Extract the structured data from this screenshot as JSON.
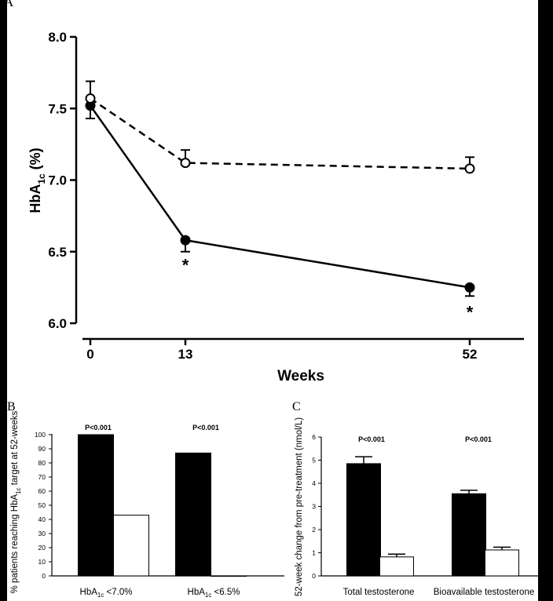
{
  "colors": {
    "background": "#000000",
    "panel": "#ffffff",
    "ink": "#000000"
  },
  "chart_data": [
    {
      "panel": "A",
      "type": "line",
      "x": [
        0,
        13,
        52
      ],
      "xticks": [
        "0",
        "13",
        "52"
      ],
      "xlabel": "Weeks",
      "ylabel_main": "HbA",
      "ylabel_sub": "1c",
      "ylabel_unit": " (%)",
      "ylim": [
        6.0,
        8.0
      ],
      "yticks": [
        "6.0",
        "6.5",
        "7.0",
        "7.5",
        "8.0"
      ],
      "series": [
        {
          "style": "solid-filled-circle",
          "values": [
            7.52,
            6.58,
            6.25
          ],
          "errors": [
            0.09,
            0.08,
            0.06
          ],
          "error_dir": [
            "down",
            "down",
            "down"
          ]
        },
        {
          "style": "dashed-open-circle",
          "values": [
            7.57,
            7.12,
            7.08
          ],
          "errors": [
            0.12,
            0.09,
            0.08
          ],
          "error_dir": [
            "up",
            "up",
            "up"
          ]
        }
      ],
      "annotations": [
        {
          "text": "*",
          "x": 13,
          "y": 6.42
        },
        {
          "text": "*",
          "x": 52,
          "y": 6.09
        }
      ]
    },
    {
      "panel": "B",
      "type": "bar",
      "group_labels": [
        {
          "main": "HbA",
          "sub": "1c",
          "rest": " <7.0%"
        },
        {
          "main": "HbA",
          "sub": "1c",
          "rest": " <6.5%"
        }
      ],
      "series": [
        {
          "fill": "#000000",
          "values": [
            100,
            87
          ]
        },
        {
          "fill": "#ffffff",
          "values": [
            43,
            0
          ]
        }
      ],
      "pvalues": [
        "P<0.001",
        "P<0.001"
      ],
      "ylabel_pre": "% patients reaching HbA",
      "ylabel_sub": "1c",
      "ylabel_post": " target at 52-weeks",
      "ylim": [
        0,
        100
      ],
      "yticks": [
        "0",
        "10",
        "20",
        "30",
        "40",
        "50",
        "60",
        "70",
        "80",
        "90",
        "100"
      ]
    },
    {
      "panel": "C",
      "type": "bar",
      "categories": [
        "Total testosterone",
        "Bioavailable testosterone"
      ],
      "series": [
        {
          "fill": "#000000",
          "values": [
            4.85,
            3.55
          ],
          "errors": [
            0.3,
            0.15
          ]
        },
        {
          "fill": "#ffffff",
          "values": [
            0.82,
            1.12
          ],
          "errors": [
            0.12,
            0.12
          ]
        }
      ],
      "pvalues": [
        "P<0.001",
        "P<0.001"
      ],
      "ylabel": "52-week change from pre-treatment (nmol/L)",
      "ylim": [
        0,
        6
      ],
      "yticks": [
        "0",
        "1",
        "2",
        "3",
        "4",
        "5",
        "6"
      ]
    }
  ]
}
